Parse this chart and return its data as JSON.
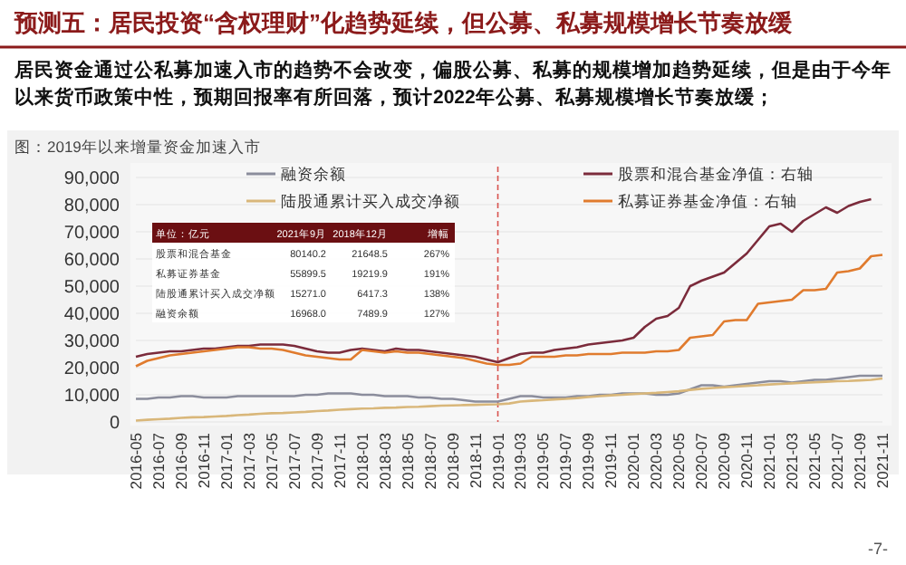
{
  "chart_data": {
    "type": "line",
    "title": "预测五：居民投资“含权理财”化趋势延续，但公募、私募规模增长节奏放缓",
    "subtitle": "居民资金通过公私募加速入市的趋势不会改变，偏股公募、私募的规模增加趋势延续，但是由于今年以来货币政策中性，预期回报率有所回落，预计2022年公募、私募规模增长节奏放缓；",
    "annotations": [
      "图：2019年以来增量资金加速入市",
      "单位：亿元 2021年9月 2018年12月 增幅",
      "股票和混合基金 80140.2 21648.5 267%",
      "私募证券基金 55899.5 19219.9 191%",
      "陆股通累计买入成交净额 15271.0 6417.3 138%",
      "融资余额 16968.0 7489.9 127%",
      "-7-"
    ],
    "categories": [
      "2016-05",
      null,
      "2016-07",
      null,
      "2016-09",
      null,
      "2016-11",
      null,
      "2017-01",
      null,
      "2017-03",
      null,
      "2017-05",
      null,
      "2017-07",
      null,
      "2017-09",
      null,
      "2017-11",
      null,
      "2018-01",
      null,
      "2018-03",
      null,
      "2018-05",
      null,
      "2018-07",
      null,
      "2018-09",
      null,
      "2018-11",
      null,
      "2019-01",
      null,
      "2019-03",
      null,
      "2019-05",
      null,
      "2019-07",
      null,
      "2019-09",
      null,
      "2019-11",
      null,
      "2020-01",
      null,
      "2020-03",
      null,
      "2020-05",
      null,
      "2020-07",
      null,
      "2020-09",
      null,
      "2020-11",
      null,
      "2021-01",
      null,
      "2021-03",
      null,
      "2021-05",
      null,
      "2021-07",
      null,
      "2021-09",
      null,
      "2021-11"
    ],
    "series": [
      {
        "name": "融资余额",
        "color": "#8b8d9c",
        "values": [
          8500,
          8500,
          9000,
          9000,
          9500,
          9500,
          9000,
          9000,
          9000,
          9500,
          9500,
          9500,
          9500,
          9500,
          9500,
          10000,
          10000,
          10500,
          10500,
          10500,
          10000,
          10000,
          9500,
          9500,
          9500,
          9000,
          9000,
          8500,
          8500,
          8000,
          7500,
          7500,
          7500,
          8500,
          9500,
          9500,
          9000,
          9000,
          9000,
          9500,
          9500,
          10000,
          10000,
          10500,
          10500,
          10500,
          10000,
          10000,
          10500,
          12000,
          13500,
          13500,
          13000,
          13500,
          14000,
          14500,
          15000,
          15000,
          14500,
          15000,
          15500,
          15500,
          16000,
          16500,
          17000,
          17000,
          17000
        ]
      },
      {
        "name": "股票和混合基金净值：右轴",
        "color": "#7b2b3b",
        "values": [
          24000,
          25000,
          25500,
          26000,
          26000,
          26500,
          27000,
          27000,
          27500,
          28000,
          28000,
          28500,
          28500,
          28500,
          28000,
          27000,
          26000,
          25500,
          25500,
          26500,
          27000,
          26500,
          26000,
          27000,
          26500,
          26500,
          26000,
          25500,
          25000,
          24500,
          24000,
          23000,
          22000,
          23500,
          25000,
          25500,
          25500,
          26500,
          27000,
          27500,
          28500,
          29000,
          29500,
          30000,
          31000,
          35000,
          38000,
          39000,
          42000,
          50000,
          52000,
          53500,
          55000,
          58500,
          62000,
          67000,
          72000,
          73000,
          70000,
          74000,
          76500,
          79000,
          77000,
          79500,
          81000,
          82000,
          null
        ]
      },
      {
        "name": "陆股通累计买入成交净额",
        "color": "#d9b77a",
        "values": [
          500,
          800,
          1000,
          1200,
          1500,
          1700,
          1800,
          2000,
          2200,
          2500,
          2700,
          3000,
          3200,
          3300,
          3500,
          3700,
          4000,
          4200,
          4500,
          4700,
          4900,
          5000,
          5200,
          5300,
          5500,
          5600,
          5800,
          6000,
          6100,
          6200,
          6300,
          6400,
          6500,
          6800,
          7500,
          7800,
          8000,
          8300,
          8500,
          8800,
          9200,
          9500,
          9800,
          10000,
          10300,
          10500,
          10700,
          11000,
          11300,
          11800,
          12200,
          12500,
          12800,
          13000,
          13300,
          13500,
          13800,
          14000,
          14200,
          14400,
          14600,
          14800,
          15000,
          15100,
          15300,
          15500,
          16000
        ]
      },
      {
        "name": "私募证券基金净值：右轴",
        "color": "#e07b2e",
        "values": [
          20500,
          22500,
          23500,
          24500,
          25000,
          25500,
          26000,
          26500,
          27000,
          27500,
          27500,
          27000,
          27000,
          26500,
          25500,
          24500,
          24000,
          23500,
          23000,
          23000,
          26500,
          26000,
          25500,
          26000,
          25500,
          25500,
          25000,
          24500,
          24000,
          23500,
          22500,
          21500,
          21000,
          21000,
          21500,
          24000,
          24000,
          24000,
          24500,
          24500,
          25000,
          25000,
          25000,
          25500,
          25500,
          25500,
          26000,
          26000,
          26500,
          31000,
          31500,
          32000,
          37000,
          37500,
          37500,
          43500,
          44000,
          44500,
          45000,
          48500,
          48500,
          49000,
          55000,
          55500,
          56500,
          61000,
          61500
        ]
      }
    ],
    "ylim": [
      0,
      90000
    ],
    "yticks": [
      {
        "value": 0,
        "label": "0"
      },
      {
        "value": 10000,
        "label": "10,000"
      },
      {
        "value": 20000,
        "label": "20,000"
      },
      {
        "value": 30000,
        "label": "30,000"
      },
      {
        "value": 40000,
        "label": "40,000"
      },
      {
        "value": 50000,
        "label": "50,000"
      },
      {
        "value": 60000,
        "label": "60,000"
      },
      {
        "value": 70000,
        "label": "70,000"
      },
      {
        "value": 80000,
        "label": "80,000"
      },
      {
        "value": 90000,
        "label": "90,000"
      }
    ],
    "ref_lines": [
      {
        "axis": "x",
        "value": "2019-01",
        "color": "#d9534f",
        "line_style": "dashed"
      }
    ],
    "grid": "y",
    "legend": "top",
    "marker": "none",
    "line_style": "solid"
  }
}
